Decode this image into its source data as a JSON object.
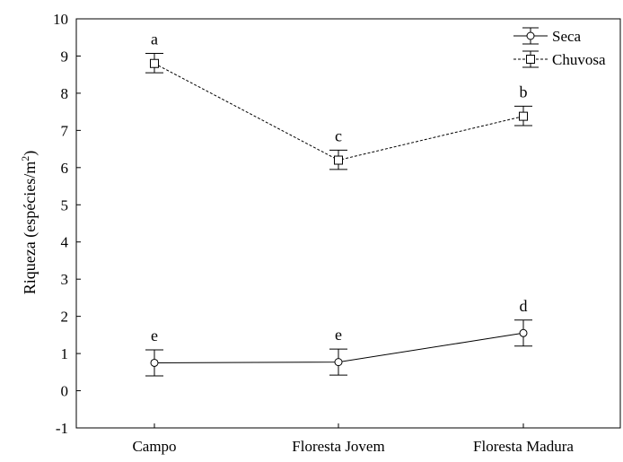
{
  "chart_data": {
    "type": "line",
    "title": "",
    "xlabel": "",
    "ylabel": "Riqueza (espécies/m²)",
    "ylabel_main": "Riqueza (espécies/m",
    "ylabel_sup": "2",
    "ylabel_end": ")",
    "ylim": [
      -1,
      10
    ],
    "yticks": [
      "-1",
      "0",
      "1",
      "2",
      "3",
      "4",
      "5",
      "6",
      "7",
      "8",
      "9",
      "10"
    ],
    "categories": [
      "Campo",
      "Floresta Jovem",
      "Floresta Madura"
    ],
    "legend_position": "top-right",
    "grid": false,
    "series": [
      {
        "name": "Seca",
        "marker": "circle",
        "line_style": "solid",
        "values": [
          0.75,
          0.77,
          1.55
        ],
        "err_low": [
          0.4,
          0.42,
          1.2
        ],
        "err_high": [
          1.1,
          1.12,
          1.9
        ],
        "letters": [
          "e",
          "e",
          "d"
        ]
      },
      {
        "name": "Chuvosa",
        "marker": "square",
        "line_style": "dashed",
        "values": [
          8.8,
          6.2,
          7.38
        ],
        "err_low": [
          8.55,
          5.95,
          7.13
        ],
        "err_high": [
          9.07,
          6.47,
          7.65
        ],
        "letters": [
          "a",
          "c",
          "b"
        ]
      }
    ]
  }
}
